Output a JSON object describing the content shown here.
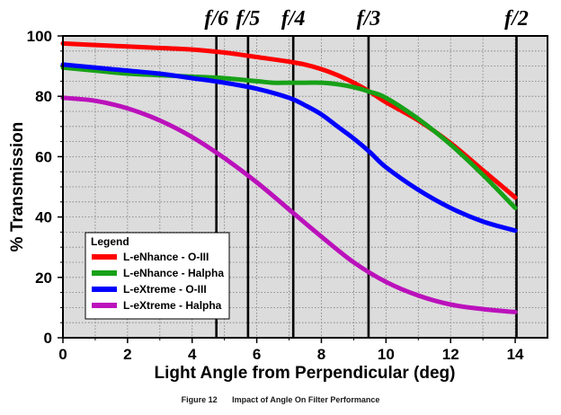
{
  "chart_data": {
    "type": "line",
    "title": "",
    "xlabel": "Light Angle from Perpendicular (deg)",
    "ylabel": "% Transmission",
    "xlim": [
      0,
      15
    ],
    "ylim": [
      0,
      100
    ],
    "xticks": [
      0,
      2,
      4,
      6,
      8,
      10,
      12,
      14
    ],
    "yticks": [
      0,
      20,
      40,
      60,
      80,
      100
    ],
    "grid": true,
    "legend": {
      "title": "Legend",
      "position": "lower-left"
    },
    "series": [
      {
        "name": "L-eNhance - O-III",
        "color": "#ff0000",
        "x": [
          0,
          1,
          2,
          3,
          4,
          5,
          6,
          7,
          7.5,
          8,
          8.5,
          9,
          9.5,
          10,
          11,
          12,
          13,
          14
        ],
        "y": [
          97.5,
          97,
          96.5,
          96,
          95.5,
          94.5,
          93,
          91.5,
          90.5,
          89,
          87,
          84.5,
          81.5,
          78,
          72,
          64.5,
          55.5,
          46.5
        ]
      },
      {
        "name": "L-eNhance - Halpha",
        "color": "#17a117",
        "x": [
          0,
          1,
          2,
          3,
          4,
          5,
          6,
          6.5,
          7,
          7.5,
          8,
          8.5,
          9,
          9.5,
          10,
          11,
          12,
          13,
          14
        ],
        "y": [
          89.5,
          88.5,
          87.5,
          87,
          86.5,
          86,
          85,
          84.5,
          84.5,
          84.5,
          84.5,
          84,
          83,
          81.5,
          79.5,
          72.5,
          64,
          54,
          43
        ]
      },
      {
        "name": "L-eXtreme - O-III",
        "color": "#0000ff",
        "x": [
          0,
          1,
          2,
          3,
          4,
          5,
          6,
          7,
          7.5,
          8,
          8.5,
          9,
          9.5,
          10,
          11,
          12,
          13,
          14
        ],
        "y": [
          90.5,
          89.5,
          88.5,
          87.5,
          86,
          84.5,
          82.5,
          79.5,
          77,
          74,
          70,
          66,
          61.5,
          56.5,
          49,
          43,
          38.5,
          35.5
        ]
      },
      {
        "name": "L-eXtreme - Halpha",
        "color": "#bb11bb",
        "x": [
          0,
          1,
          2,
          3,
          4,
          5,
          6,
          7,
          8,
          9,
          10,
          11,
          12,
          13,
          14
        ],
        "y": [
          79.5,
          78.5,
          76,
          72,
          66.5,
          59.5,
          51.5,
          42.5,
          33.5,
          25,
          18.5,
          14,
          11,
          9.5,
          8.5
        ]
      }
    ],
    "annotations": [
      {
        "label": "f/6",
        "x": 4.75
      },
      {
        "label": "f/5",
        "x": 5.73
      },
      {
        "label": "f/4",
        "x": 7.13
      },
      {
        "label": "f/3",
        "x": 9.46
      },
      {
        "label": "f/2",
        "x": 14.04
      }
    ]
  },
  "caption": {
    "figure_label": "Figure 12",
    "figure_text": "Impact of Angle On Filter Performance"
  }
}
